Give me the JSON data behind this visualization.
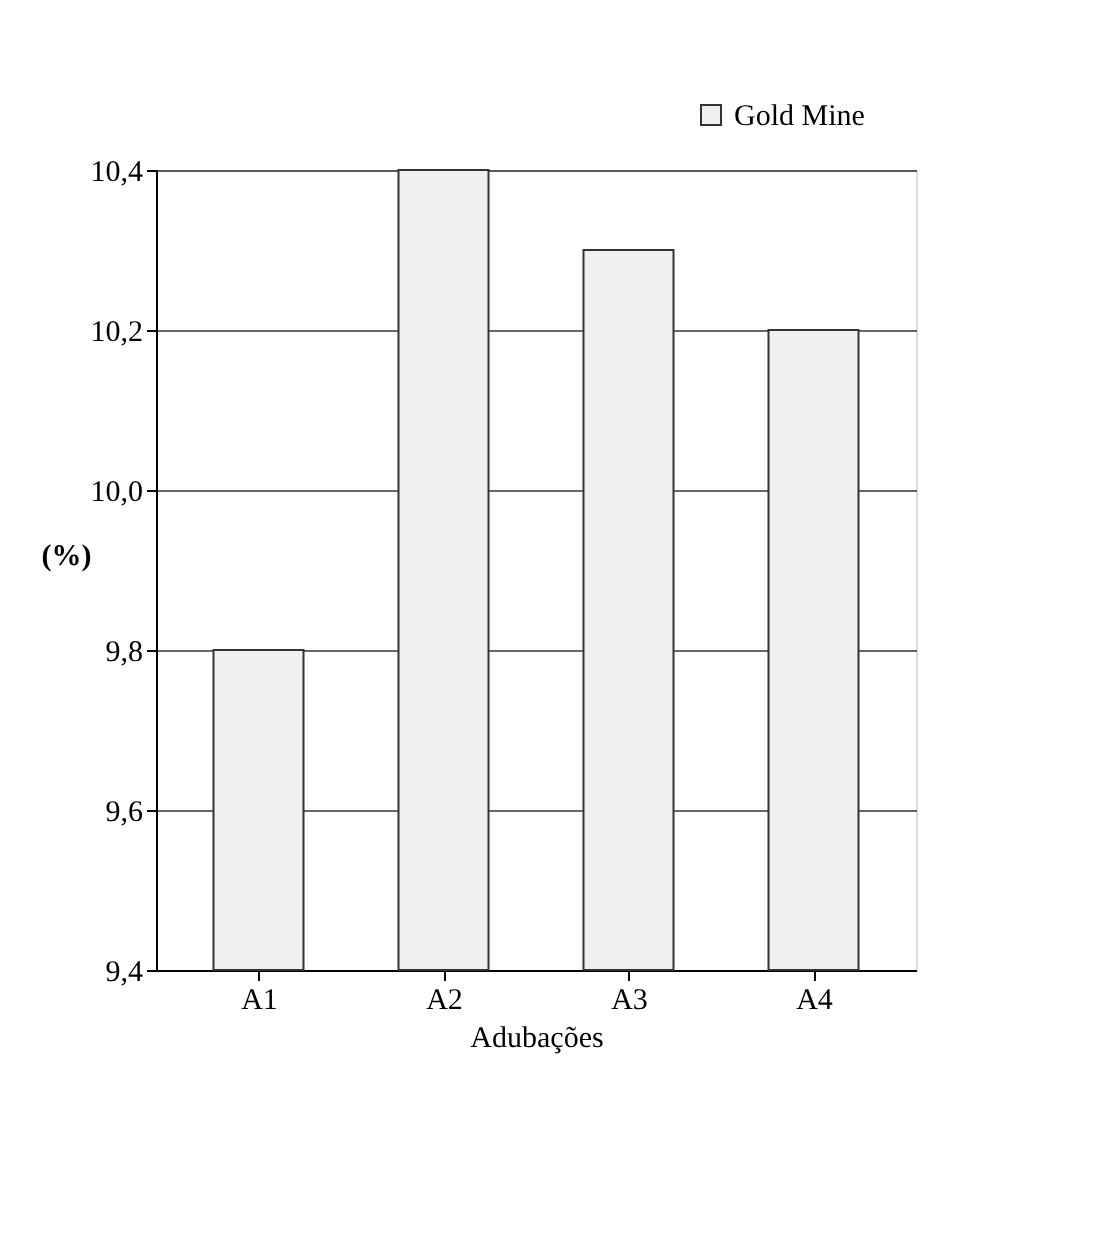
{
  "chart_data": {
    "type": "bar",
    "xlabel": "Adubações",
    "ylabel": "(%)",
    "categories": [
      "A1",
      "A2",
      "A3",
      "A4"
    ],
    "series": [
      {
        "name": "Gold Mine",
        "color": "#f0f0f0",
        "values": [
          9.8,
          10.4,
          10.3,
          10.2
        ]
      }
    ],
    "ylim": [
      9.4,
      10.4
    ],
    "yticks": [
      {
        "value": 9.4,
        "label": "9,4"
      },
      {
        "value": 9.6,
        "label": "9,6"
      },
      {
        "value": 9.8,
        "label": "9,8"
      },
      {
        "value": 10.0,
        "label": "10,0"
      },
      {
        "value": 10.2,
        "label": "10,2"
      },
      {
        "value": 10.4,
        "label": "10,4"
      }
    ],
    "grid": "y",
    "legend": "top right"
  }
}
